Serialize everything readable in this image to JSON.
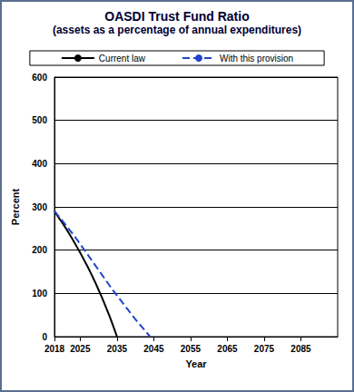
{
  "chart_data": {
    "type": "line",
    "title": "OASDI Trust Fund Ratio",
    "subtitle": "(assets as a percentage of annual expenditures)",
    "x_label": "Year",
    "y_label": "Percent",
    "x": [
      2018,
      2019,
      2020,
      2021,
      2022,
      2023,
      2024,
      2025,
      2026,
      2027,
      2028,
      2029,
      2030,
      2031,
      2032,
      2033,
      2034,
      2035,
      2036,
      2037,
      2038,
      2039,
      2040,
      2041,
      2042,
      2043,
      2044
    ],
    "series": [
      {
        "name": "Current law",
        "color": "#000000",
        "line_style": "solid",
        "values": [
          290,
          277,
          265,
          252,
          238,
          224,
          209,
          194,
          178,
          162,
          145,
          127,
          108,
          89,
          68,
          47,
          24,
          0,
          null,
          null,
          null,
          null,
          null,
          null,
          null,
          null,
          null
        ]
      },
      {
        "name": "With this provision",
        "color": "#2244cc",
        "line_style": "dashed",
        "values": [
          290,
          280,
          270,
          259,
          248,
          237,
          226,
          214,
          202,
          190,
          178,
          166,
          154,
          142,
          130,
          118,
          106,
          95,
          84,
          73,
          62,
          51,
          40,
          30,
          20,
          10,
          0
        ]
      }
    ],
    "xlim": [
      2018,
      2095
    ],
    "xticks": [
      2018,
      2025,
      2035,
      2045,
      2055,
      2065,
      2075,
      2085
    ],
    "ylim": [
      0,
      600
    ],
    "yticks": [
      0,
      100,
      200,
      300,
      400,
      500,
      600
    ],
    "grid": true,
    "legend": "top"
  }
}
